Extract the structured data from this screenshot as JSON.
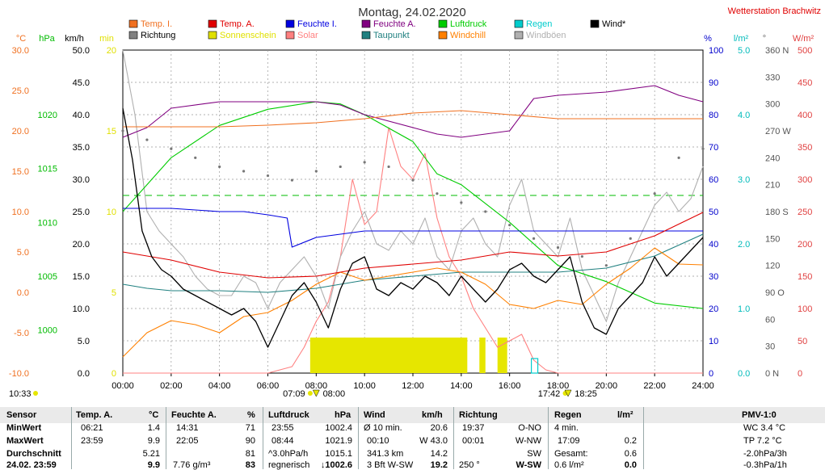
{
  "title": "Montag, 24.02.2020",
  "station": "Wetterstation Brachwitz",
  "legend": [
    {
      "label": "Temp. I.",
      "color": "#f07020"
    },
    {
      "label": "Temp. A.",
      "color": "#e00000"
    },
    {
      "label": "Feuchte I.",
      "color": "#0000e0"
    },
    {
      "label": "Feuchte A.",
      "color": "#800080"
    },
    {
      "label": "Luftdruck",
      "color": "#00cc00"
    },
    {
      "label": "Regen",
      "color": "#00cccc"
    },
    {
      "label": "Wind*",
      "color": "#000000"
    },
    {
      "label": "Richtung",
      "color": "#808080"
    },
    {
      "label": "Sonnenschein",
      "color": "#e0e000"
    },
    {
      "label": "Solar",
      "color": "#ff8080"
    },
    {
      "label": "Taupunkt",
      "color": "#208080"
    },
    {
      "label": "Windchill",
      "color": "#ff8000"
    },
    {
      "label": "Windböen",
      "color": "#b0b0b0"
    }
  ],
  "unit_labels": {
    "temp": "°C",
    "hpa": "hPa",
    "kmh": "km/h",
    "min": "min",
    "pct": "%",
    "rain": "l/m²",
    "deg": "°",
    "solar": "W/m²"
  },
  "colors": {
    "temp_axis": "#f07020",
    "hpa_axis": "#00bb00",
    "min_axis": "#e0e000",
    "pct_axis": "#0000cc",
    "rain_axis": "#00bbbb",
    "solar_axis": "#e04040"
  },
  "chart_data": {
    "type": "line",
    "title": "Montag, 24.02.2020",
    "x_ticks": [
      "00:00",
      "02:00",
      "04:00",
      "06:00",
      "08:00",
      "10:00",
      "12:00",
      "14:00",
      "16:00",
      "18:00",
      "20:00",
      "22:00",
      "24:00"
    ],
    "axes": {
      "temp_c": {
        "ticks": [
          "30.0",
          "25.0",
          "20.0",
          "15.0",
          "10.0",
          "5.0",
          "0.0",
          "-5.0",
          "-10.0"
        ]
      },
      "pressure_hpa": {
        "ticks": [
          "1020",
          "1015",
          "1010",
          "1005",
          "1000"
        ]
      },
      "wind_kmh": {
        "ticks": [
          "50.0",
          "45.0",
          "40.0",
          "35.0",
          "30.0",
          "25.0",
          "20.0",
          "15.0",
          "10.0",
          "5.0",
          "0.0"
        ]
      },
      "sunshine_min": {
        "ticks": [
          "20",
          "15",
          "10",
          "5",
          "0"
        ]
      },
      "humidity_pct": {
        "ticks": [
          "100",
          "90",
          "80",
          "70",
          "60",
          "50",
          "40",
          "30",
          "20",
          "10",
          "0"
        ]
      },
      "rain_lm2": {
        "ticks": [
          "5.0",
          "4.0",
          "3.0",
          "2.0",
          "1.0",
          "0.0"
        ]
      },
      "direction_deg": {
        "ticks": [
          "360 N",
          "330",
          "300",
          "270 W",
          "240",
          "210",
          "180 S",
          "150",
          "120",
          "90 O",
          "60",
          "30",
          "0 N"
        ]
      },
      "solar_wm2": {
        "ticks": [
          "500",
          "450",
          "400",
          "350",
          "300",
          "250",
          "200",
          "150",
          "100",
          "50",
          "0"
        ]
      }
    },
    "series": [
      {
        "name": "Temp. I.",
        "unit": "°C",
        "x": [
          0,
          2,
          4,
          6,
          8,
          10,
          12,
          14,
          16,
          18,
          20,
          22,
          24
        ],
        "values": [
          20.5,
          20.5,
          20.5,
          20.7,
          21.0,
          21.5,
          22.2,
          22.5,
          22.0,
          21.5,
          21.5,
          21.5,
          21.5
        ]
      },
      {
        "name": "Temp. A.",
        "unit": "°C",
        "x": [
          0,
          1,
          2,
          4,
          6,
          8,
          10,
          12,
          14,
          16,
          18,
          20,
          22,
          24
        ],
        "values": [
          5.0,
          4.5,
          4.0,
          2.5,
          1.8,
          2.0,
          3.0,
          3.5,
          4.0,
          5.0,
          4.5,
          5.0,
          7.0,
          9.9
        ]
      },
      {
        "name": "Feuchte I.",
        "unit": "%",
        "x": [
          0,
          2,
          4,
          5,
          6,
          6.8,
          7.0,
          8,
          10,
          12,
          14,
          16,
          18,
          20,
          22,
          24
        ],
        "values": [
          51,
          51,
          50,
          50,
          49,
          48,
          39,
          42,
          44,
          44,
          44,
          44,
          44,
          44,
          44,
          44
        ]
      },
      {
        "name": "Feuchte A.",
        "unit": "%",
        "x": [
          0,
          1,
          2,
          4,
          6,
          8,
          9,
          10,
          12,
          13,
          14,
          16,
          17,
          18,
          20,
          22,
          23,
          24
        ],
        "values": [
          73,
          76,
          82,
          84,
          84,
          84,
          83,
          80,
          76,
          74,
          73,
          75,
          85,
          86,
          87,
          89,
          86,
          84
        ]
      },
      {
        "name": "Luftdruck",
        "unit": "hPa",
        "x": [
          0,
          1,
          2,
          4,
          6,
          8,
          9,
          10,
          12,
          13,
          14,
          16,
          18,
          20,
          22,
          24
        ],
        "values": [
          1011,
          1013.5,
          1016,
          1019,
          1020.5,
          1021.2,
          1021,
          1020,
          1017.5,
          1014.5,
          1013.5,
          1010,
          1006,
          1004.5,
          1002.5,
          1002
        ]
      },
      {
        "name": "Taupunkt",
        "unit": "°C",
        "x": [
          0,
          1,
          2,
          4,
          6,
          8,
          10,
          12,
          14,
          16,
          18,
          20,
          22,
          24
        ],
        "values": [
          1.0,
          0.5,
          0.2,
          0.2,
          0.0,
          0.5,
          1.5,
          2.0,
          2.5,
          2.5,
          2.5,
          3.0,
          4.5,
          7.2
        ]
      },
      {
        "name": "Windchill",
        "unit": "°C",
        "x": [
          0,
          1,
          2,
          3,
          4,
          5,
          6,
          7,
          8,
          9,
          10,
          11,
          12,
          13,
          14,
          15,
          16,
          17,
          18,
          19,
          20,
          21,
          22,
          23,
          24
        ],
        "values": [
          -8.0,
          -5.0,
          -3.5,
          -4.0,
          -5.0,
          -3.0,
          -2.5,
          -1.0,
          1.0,
          2.5,
          1.5,
          2.0,
          2.5,
          3.0,
          2.5,
          1.0,
          -1.5,
          -2.0,
          -1.0,
          -1.5,
          1.0,
          3.0,
          5.5,
          3.5,
          3.4
        ]
      },
      {
        "name": "Wind*",
        "unit": "km/h",
        "x": [
          0,
          0.4,
          0.8,
          1.2,
          1.6,
          2,
          2.5,
          3,
          3.5,
          4,
          4.5,
          5,
          5.5,
          6,
          6.5,
          7,
          7.5,
          8,
          8.5,
          9,
          9.5,
          10,
          10.5,
          11,
          11.5,
          12,
          12.5,
          13,
          13.5,
          14,
          14.5,
          15,
          15.5,
          16,
          16.5,
          17,
          17.5,
          18,
          18.5,
          19,
          19.5,
          20,
          20.5,
          21,
          21.5,
          22,
          22.5,
          23,
          23.5,
          24
        ],
        "values": [
          41,
          33,
          22,
          18,
          16,
          15,
          13,
          12,
          11,
          10,
          9,
          10,
          8,
          4,
          8,
          12,
          14,
          11,
          7,
          13,
          17,
          18,
          13,
          12,
          14,
          13,
          15,
          14,
          12,
          15,
          13,
          11,
          13,
          16,
          17,
          15,
          14,
          16,
          18,
          11,
          7,
          6,
          10,
          12,
          14,
          18,
          15,
          17,
          19,
          21
        ]
      },
      {
        "name": "Windböen",
        "unit": "km/h",
        "x": [
          0,
          0.5,
          1,
          1.5,
          2,
          2.5,
          3,
          3.5,
          4,
          4.5,
          5,
          5.5,
          6,
          6.5,
          7,
          7.5,
          8,
          8.5,
          9,
          9.5,
          10,
          10.5,
          11,
          11.5,
          12,
          12.5,
          13,
          13.5,
          14,
          14.5,
          15,
          15.5,
          16,
          16.5,
          17,
          17.5,
          18,
          18.5,
          19,
          19.5,
          20,
          20.5,
          21,
          21.5,
          22,
          22.5,
          23,
          23.5,
          24
        ],
        "values": [
          50,
          40,
          25,
          22,
          20,
          18,
          15,
          13,
          12,
          12,
          15,
          14,
          10,
          14,
          16,
          18,
          15,
          10,
          18,
          22,
          25,
          20,
          19,
          22,
          20,
          24,
          18,
          16,
          22,
          24,
          20,
          18,
          26,
          30,
          22,
          20,
          18,
          24,
          16,
          12,
          8,
          14,
          18,
          22,
          26,
          28,
          25,
          27,
          32
        ]
      },
      {
        "name": "Richtung",
        "unit": "°",
        "x": [
          0,
          1,
          2,
          3,
          4,
          5,
          6,
          7,
          8,
          9,
          10,
          11,
          12,
          13,
          14,
          15,
          16,
          17,
          18,
          19,
          20,
          21,
          22,
          23,
          24
        ],
        "values": [
          270,
          260,
          250,
          240,
          230,
          225,
          220,
          215,
          225,
          230,
          235,
          230,
          215,
          200,
          190,
          180,
          165,
          150,
          140,
          130,
          120,
          150,
          200,
          240,
          250
        ]
      },
      {
        "name": "Solar",
        "unit": "W/m²",
        "x": [
          0,
          6,
          7,
          7.5,
          8,
          8.5,
          9,
          9.5,
          10,
          10.5,
          11,
          11.5,
          12,
          12.5,
          13,
          13.5,
          14,
          14.5,
          15,
          15.5,
          16,
          16.5,
          17,
          17.5,
          18,
          24
        ],
        "values": [
          0,
          0,
          10,
          40,
          80,
          110,
          180,
          300,
          230,
          250,
          380,
          320,
          300,
          340,
          240,
          180,
          150,
          100,
          70,
          40,
          50,
          60,
          20,
          5,
          0,
          0
        ]
      }
    ],
    "sunshine_blocks": [
      [
        7.75,
        14.25
      ],
      [
        14.75,
        15.0
      ],
      [
        15.5,
        15.9
      ]
    ],
    "sunshine_height_min": 2.2,
    "rain": {
      "value": 0.2,
      "unit": "l/m²"
    },
    "reference_line": {
      "name": "Windböen Ø",
      "value_kmh": 27.5,
      "color": "#00bb00"
    },
    "markers_bottom": [
      {
        "label": "07:09",
        "x": 7.15,
        "icon": "sunrise"
      },
      {
        "label": "08:00",
        "x": 8.0,
        "icon": "arrow"
      },
      {
        "label": "17:42",
        "x": 17.7,
        "icon": "sunset"
      },
      {
        "label": "18:25",
        "x": 18.42,
        "icon": "arrow"
      }
    ],
    "side_label": "10:33"
  },
  "table": {
    "sensor": {
      "header": "Sensor",
      "rows": [
        "MinWert",
        "MaxWert",
        "Durchschnitt",
        "24.02. 23:59"
      ]
    },
    "temp": {
      "header": "Temp. A.",
      "unit": "°C",
      "rows": [
        [
          "06:21",
          "1.4"
        ],
        [
          "23:59",
          "9.9"
        ],
        [
          "",
          "5.21"
        ],
        [
          "",
          "9.9"
        ]
      ]
    },
    "humidity": {
      "header": "Feuchte A.",
      "unit": "%",
      "rows": [
        [
          "14:31",
          "71"
        ],
        [
          "22:05",
          "90"
        ],
        [
          "",
          "81"
        ],
        [
          "7.76 g/m³",
          "83"
        ]
      ]
    },
    "pressure": {
      "header": "Luftdruck",
      "unit": "hPa",
      "rows": [
        [
          "23:55",
          "1002.4"
        ],
        [
          "08:44",
          "1021.9"
        ],
        [
          "^3.0hPa/h",
          "1015.1"
        ],
        [
          "regnerisch",
          "↓1002.6"
        ]
      ]
    },
    "wind": {
      "header": "Wind",
      "unit": "km/h",
      "rows": [
        [
          "Ø 10 min.",
          "20.6"
        ],
        [
          "00:10",
          "W 43.0"
        ],
        [
          "341.3 km",
          "14.2"
        ],
        [
          "3 Bft W-SW",
          "19.2"
        ]
      ]
    },
    "direction": {
      "header": "Richtung",
      "rows": [
        [
          "19:37",
          "O-NO"
        ],
        [
          "00:01",
          "W-NW"
        ],
        [
          "",
          "SW"
        ],
        [
          "250 °",
          "W-SW"
        ]
      ]
    },
    "rain": {
      "header": "Regen",
      "unit": "l/m²",
      "rows": [
        [
          "4 min.",
          ""
        ],
        [
          "17:09",
          "0.2"
        ],
        [
          "Gesamt:",
          "0.6"
        ],
        [
          "0.6 l/m²",
          "0.0"
        ]
      ]
    },
    "pmv": {
      "header": "PMV-1:0",
      "rows": [
        "WC 3.4 °C",
        "TP 7.2 °C",
        "-2.0hPa/3h",
        "-0.3hPa/1h"
      ]
    }
  }
}
